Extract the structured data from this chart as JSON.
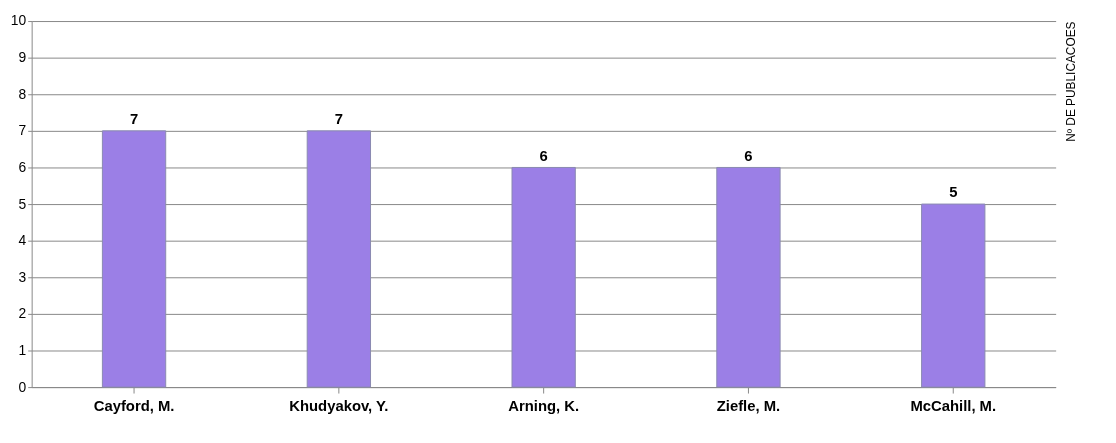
{
  "chart_data": {
    "type": "bar",
    "ylabel": "Nº DE PUBLICACOES",
    "categories": [
      "Cayford, M.",
      "Khudyakov, Y.",
      "Arning, K.",
      "Ziefle, M.",
      "McCahill, M."
    ],
    "values": [
      7,
      7,
      6,
      6,
      5
    ],
    "color": "#9b7fe6",
    "ylim": [
      0,
      10
    ],
    "yticks": [
      0,
      1,
      2,
      3,
      4,
      5,
      6,
      7,
      8,
      9,
      10
    ],
    "grid": "y",
    "data_labels": true
  }
}
